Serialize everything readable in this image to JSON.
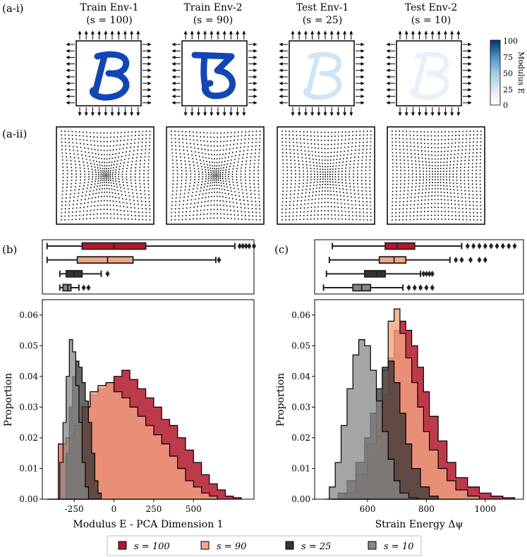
{
  "panel_labels": {
    "a_i": "(a-i)",
    "a_ii": "(a-ii)",
    "b": "(b)",
    "c": "(c)"
  },
  "envs": [
    {
      "title": "Train Env-1",
      "sublabel": "(s = 100)",
      "s": 100
    },
    {
      "title": "Train Env-2",
      "sublabel": "(s = 90)",
      "s": 90
    },
    {
      "title": "Test Env-1",
      "sublabel": "(s = 25)",
      "s": 25
    },
    {
      "title": "Test Env-2",
      "sublabel": "(s = 10)",
      "s": 10
    }
  ],
  "colorbar": {
    "label": "Modulus E",
    "ticks": [
      "100",
      "75",
      "50",
      "25",
      "0"
    ],
    "colors": [
      "#ffffff",
      "#dbe9f6",
      "#9ecae1",
      "#4292c6",
      "#08306b"
    ]
  },
  "series_colors": {
    "s100": "#b2182b",
    "s90": "#f4a582",
    "s25": "#333333",
    "s10": "#878787"
  },
  "legend": [
    {
      "label": "s = 100",
      "color": "#b2182b"
    },
    {
      "label": "s = 90",
      "color": "#f4a582"
    },
    {
      "label": "s = 25",
      "color": "#333333"
    },
    {
      "label": "s = 10",
      "color": "#878787"
    }
  ],
  "chart_data": [
    {
      "type": "area",
      "title": "",
      "xlabel": "Modulus E - PCA Dimension 1",
      "ylabel": "Proportion",
      "xlim": [
        -450,
        880
      ],
      "ylim": [
        0,
        0.065
      ],
      "xticks": [
        "-250",
        "0",
        "250",
        "500"
      ],
      "yticks": [
        "0.00",
        "0.01",
        "0.02",
        "0.03",
        "0.04",
        "0.05",
        "0.06"
      ],
      "grid": false,
      "series": [
        {
          "name": "s = 100",
          "x": [
            -420,
            -350,
            -300,
            -250,
            -200,
            -150,
            -100,
            -50,
            0,
            50,
            100,
            150,
            200,
            250,
            300,
            350,
            400,
            450,
            500,
            550,
            600,
            650,
            700,
            750,
            800
          ],
          "y": [
            0.0,
            0.018,
            0.02,
            0.023,
            0.03,
            0.034,
            0.036,
            0.038,
            0.04,
            0.042,
            0.039,
            0.036,
            0.033,
            0.03,
            0.026,
            0.024,
            0.02,
            0.016,
            0.012,
            0.008,
            0.005,
            0.003,
            0.001,
            0.0005,
            0.0
          ]
        },
        {
          "name": "s = 90",
          "x": [
            -420,
            -350,
            -300,
            -250,
            -200,
            -150,
            -100,
            -50,
            0,
            50,
            100,
            150,
            200,
            250,
            300,
            350,
            400,
            450,
            500,
            550,
            600,
            650
          ],
          "y": [
            0.0,
            0.018,
            0.02,
            0.024,
            0.03,
            0.035,
            0.037,
            0.038,
            0.035,
            0.033,
            0.03,
            0.027,
            0.024,
            0.021,
            0.018,
            0.014,
            0.01,
            0.006,
            0.004,
            0.002,
            0.001,
            0.0
          ]
        },
        {
          "name": "s = 25",
          "x": [
            -320,
            -300,
            -280,
            -260,
            -240,
            -220,
            -200,
            -180,
            -160,
            -140,
            -120,
            -100,
            -80
          ],
          "y": [
            0.0,
            0.015,
            0.03,
            0.04,
            0.045,
            0.043,
            0.038,
            0.032,
            0.025,
            0.015,
            0.006,
            0.002,
            0.0
          ]
        },
        {
          "name": "s = 10",
          "x": [
            -360,
            -340,
            -320,
            -300,
            -280,
            -260,
            -240,
            -220,
            -200,
            -180,
            -160
          ],
          "y": [
            0.0,
            0.012,
            0.025,
            0.04,
            0.052,
            0.048,
            0.037,
            0.025,
            0.012,
            0.004,
            0.0
          ]
        }
      ],
      "boxplot": {
        "order": [
          "s = 100",
          "s = 90",
          "s = 25",
          "s = 10"
        ],
        "whisker_low": [
          -420,
          -420,
          -340,
          -340
        ],
        "q1": [
          -200,
          -230,
          -300,
          -320
        ],
        "median": [
          0,
          -40,
          -250,
          -290
        ],
        "q3": [
          200,
          120,
          -200,
          -270
        ],
        "whisker_high": [
          760,
          640,
          -80,
          -220
        ],
        "outliers": [
          [
            790,
            810,
            830,
            850,
            880
          ],
          [
            660
          ],
          [
            -40
          ],
          [
            -190,
            -160
          ]
        ]
      }
    },
    {
      "type": "area",
      "title": "",
      "xlabel": "Strain Energy Δψ",
      "ylabel": "Proportion",
      "xlim": [
        420,
        1130
      ],
      "ylim": [
        0,
        0.065
      ],
      "xticks": [
        "600",
        "800",
        "1000"
      ],
      "yticks": [
        "0.00",
        "0.01",
        "0.02",
        "0.03",
        "0.04",
        "0.05",
        "0.06"
      ],
      "grid": false,
      "series": [
        {
          "name": "s = 100",
          "x": [
            480,
            520,
            560,
            600,
            630,
            650,
            670,
            690,
            710,
            730,
            750,
            770,
            790,
            810,
            840,
            870,
            900,
            940,
            980,
            1020,
            1060,
            1100
          ],
          "y": [
            0.0,
            0.002,
            0.006,
            0.014,
            0.024,
            0.034,
            0.046,
            0.055,
            0.058,
            0.055,
            0.05,
            0.043,
            0.035,
            0.027,
            0.019,
            0.012,
            0.007,
            0.004,
            0.002,
            0.001,
            0.0005,
            0.0
          ]
        },
        {
          "name": "s = 90",
          "x": [
            480,
            520,
            560,
            600,
            630,
            650,
            670,
            690,
            710,
            730,
            750,
            770,
            790,
            810,
            840,
            870,
            900,
            940,
            980
          ],
          "y": [
            0.0,
            0.002,
            0.008,
            0.018,
            0.03,
            0.042,
            0.058,
            0.062,
            0.054,
            0.046,
            0.038,
            0.03,
            0.022,
            0.016,
            0.01,
            0.006,
            0.003,
            0.001,
            0.0
          ]
        },
        {
          "name": "s = 25",
          "x": [
            470,
            500,
            530,
            560,
            590,
            610,
            630,
            650,
            670,
            690,
            710,
            730,
            750,
            780,
            810,
            840
          ],
          "y": [
            0.0,
            0.002,
            0.006,
            0.012,
            0.02,
            0.028,
            0.036,
            0.043,
            0.045,
            0.038,
            0.028,
            0.018,
            0.01,
            0.004,
            0.001,
            0.0
          ]
        },
        {
          "name": "s = 10",
          "x": [
            450,
            470,
            490,
            510,
            530,
            550,
            570,
            590,
            610,
            630,
            650,
            670,
            690,
            710,
            740,
            770
          ],
          "y": [
            0.0,
            0.004,
            0.012,
            0.024,
            0.036,
            0.047,
            0.052,
            0.05,
            0.042,
            0.032,
            0.022,
            0.013,
            0.006,
            0.002,
            0.0005,
            0.0
          ]
        }
      ],
      "boxplot": {
        "order": [
          "s = 100",
          "s = 90",
          "s = 25",
          "s = 10"
        ],
        "whisker_low": [
          480,
          470,
          460,
          450
        ],
        "q1": [
          660,
          640,
          590,
          550
        ],
        "median": [
          700,
          690,
          630,
          580
        ],
        "q3": [
          760,
          730,
          660,
          610
        ],
        "whisker_high": [
          920,
          880,
          780,
          720
        ],
        "outliers": [
          [
            940,
            960,
            980,
            1000,
            1020,
            1040,
            1060,
            1080,
            1100
          ],
          [
            900,
            920,
            950,
            980,
            1000
          ],
          [
            790,
            800,
            810,
            820
          ],
          [
            740,
            760,
            780,
            800,
            820
          ]
        ]
      }
    }
  ]
}
